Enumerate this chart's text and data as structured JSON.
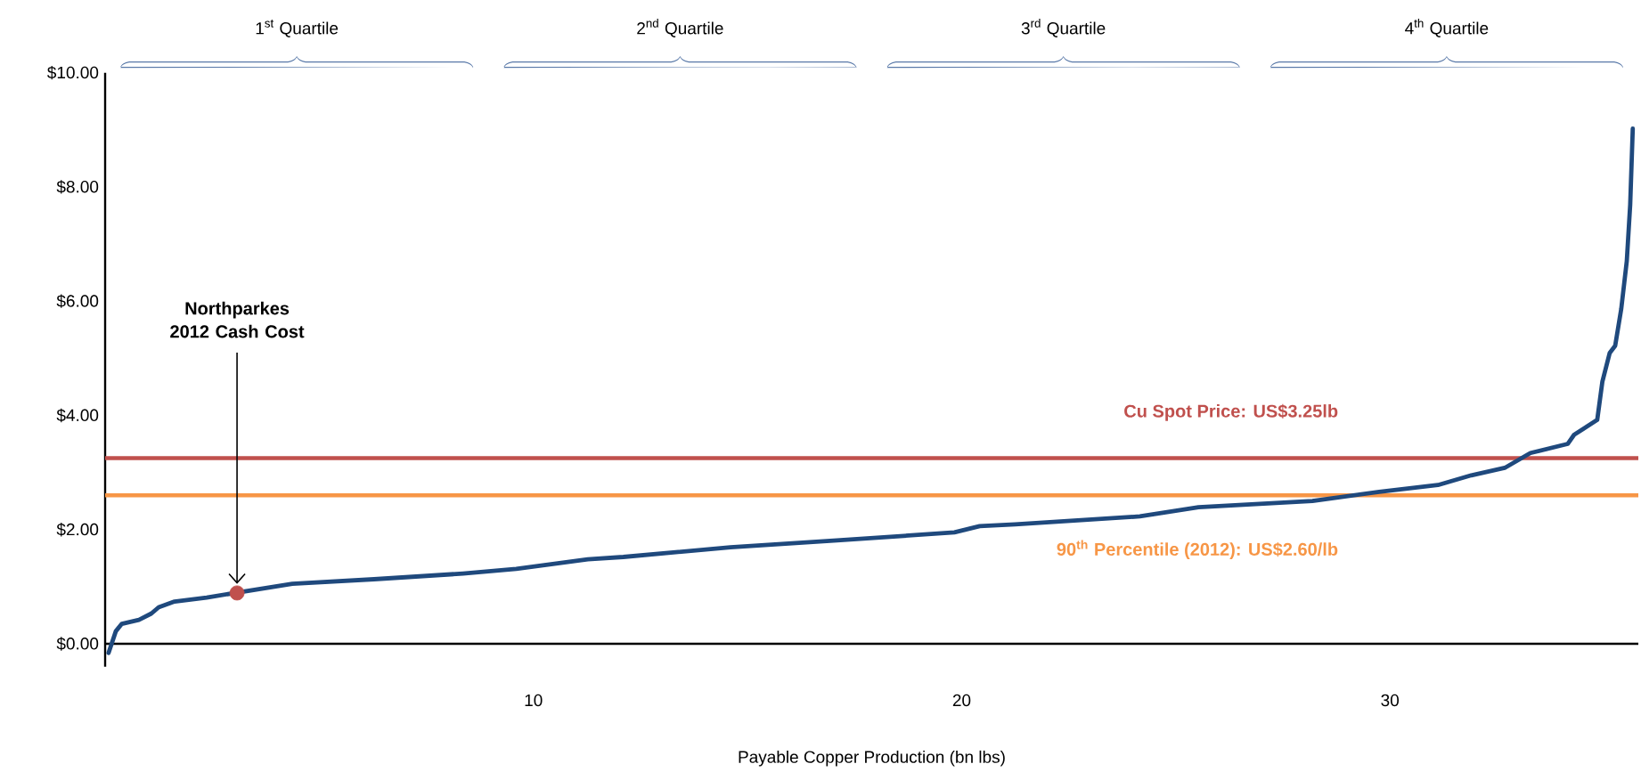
{
  "chart_data": {
    "type": "line",
    "xlabel": "Payable Copper Production (bn lbs)",
    "xlim": [
      0,
      35.8
    ],
    "xticks": [
      10,
      20,
      30
    ],
    "ylim": [
      -0.4,
      10
    ],
    "yticks": [
      {
        "value": 0,
        "label": "$0.00"
      },
      {
        "value": 2,
        "label": "$2.00"
      },
      {
        "value": 4,
        "label": "$4.00"
      },
      {
        "value": 6,
        "label": "$6.00"
      },
      {
        "value": 8,
        "label": "$8.00"
      },
      {
        "value": 10,
        "label": "$10.00"
      }
    ],
    "series": [
      {
        "color": "#1f497d",
        "x": [
          0.08,
          0.25,
          0.39,
          0.79,
          1.08,
          1.25,
          1.62,
          2.37,
          4.37,
          6.28,
          8.36,
          9.6,
          11.27,
          12.1,
          14.6,
          17.09,
          19.83,
          20.42,
          21.25,
          24.16,
          25.53,
          28.19,
          29.75,
          31.12,
          31.9,
          32.68,
          33.28,
          34.15,
          34.3,
          34.84,
          34.96,
          35.13,
          35.26,
          35.4,
          35.53,
          35.61,
          35.67
        ],
        "values": [
          -0.16,
          0.22,
          0.35,
          0.42,
          0.53,
          0.64,
          0.74,
          0.81,
          1.05,
          1.13,
          1.23,
          1.31,
          1.48,
          1.52,
          1.69,
          1.81,
          1.95,
          2.06,
          2.09,
          2.23,
          2.39,
          2.5,
          2.66,
          2.78,
          2.95,
          3.08,
          3.34,
          3.5,
          3.66,
          3.92,
          4.59,
          5.09,
          5.22,
          5.86,
          6.7,
          7.69,
          9.02
        ]
      },
      {
        "type": "scatter",
        "color": "#c0504d",
        "x": [
          3.08
        ],
        "values": [
          0.89
        ]
      }
    ],
    "ref_lines": [
      {
        "axis": "y",
        "value": 3.25,
        "label": "Cu Spot Price: US$3.25lb",
        "color": "#c0504d"
      },
      {
        "axis": "y",
        "value": 2.6,
        "label": "90$^{th}$ Percentile (2012): US$2.60/lb",
        "color": "#f79646"
      }
    ],
    "annotations": [
      {
        "text": "Northparkes 2012 Cash Cost",
        "x": 3.08,
        "y": 1.05
      },
      "1$^{st}$ Quartile",
      "2$^{nd}$ Quartile",
      "3$^{rd}$ Quartile",
      "4$^{th}$ Quartile"
    ]
  }
}
